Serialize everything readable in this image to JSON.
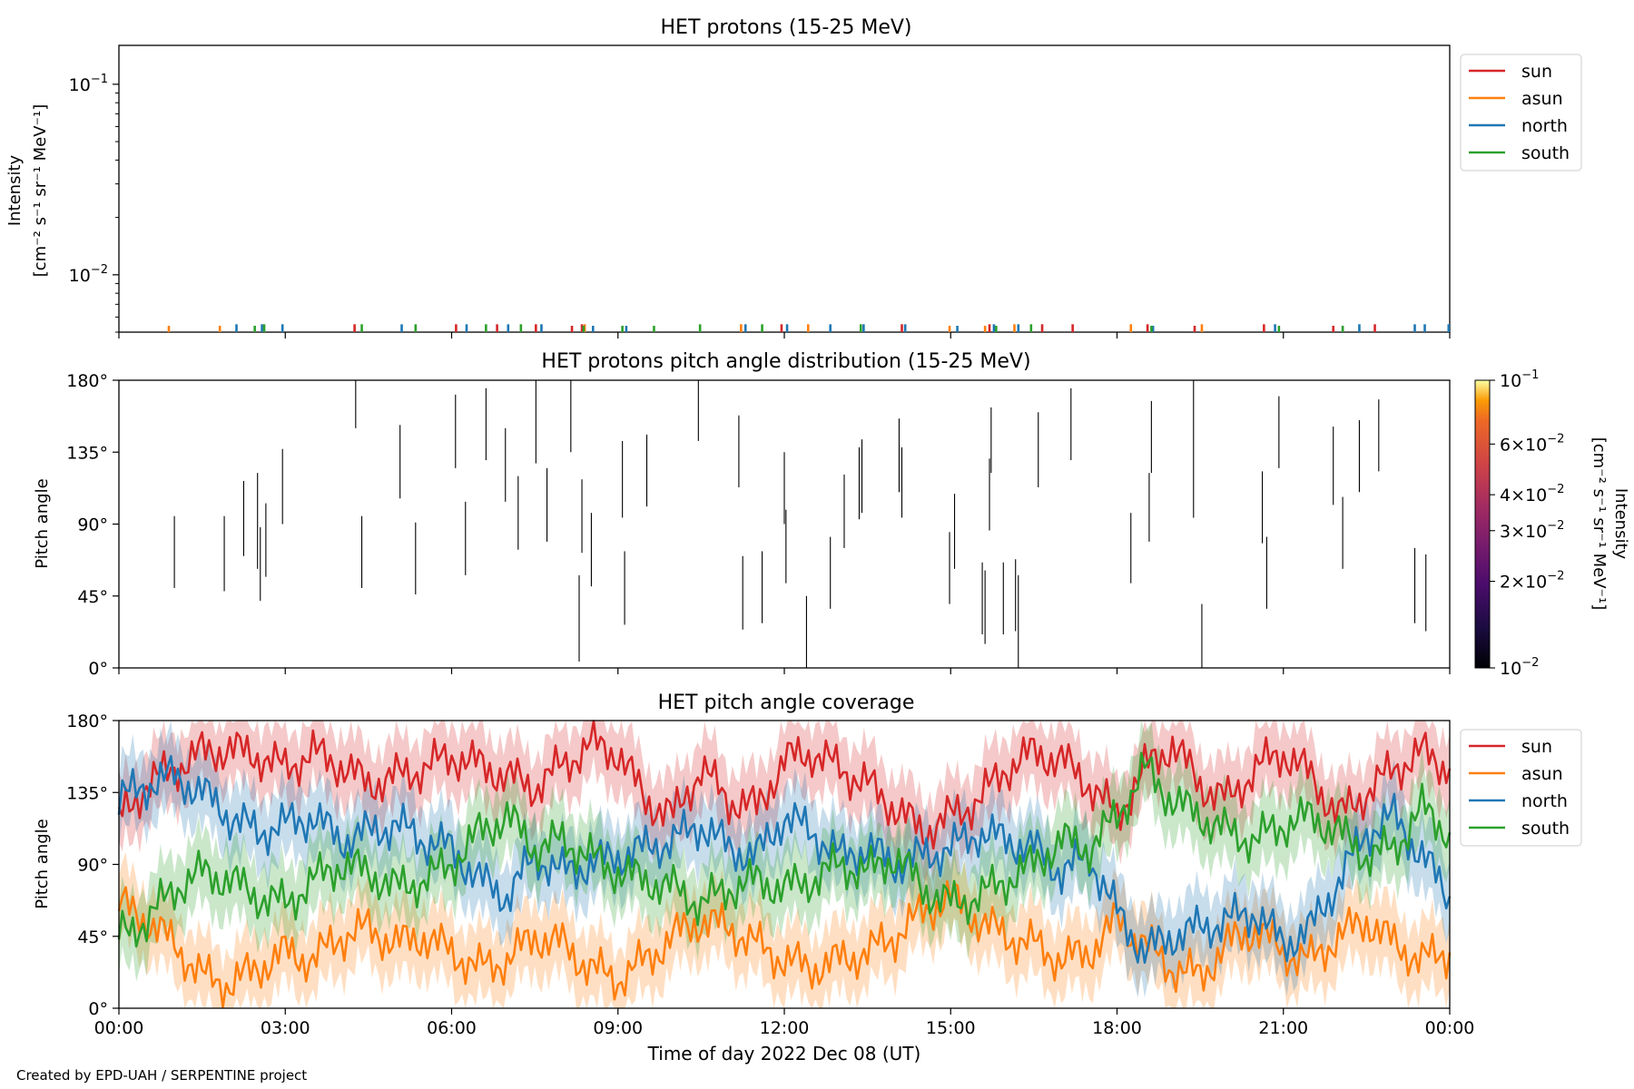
{
  "footer": {
    "credit": "Created by EPD-UAH / SERPENTINE project"
  },
  "colors": {
    "sun": "#d62728",
    "asun": "#ff7f0e",
    "north": "#1f77b4",
    "south": "#2ca02c"
  },
  "chart_data": [
    {
      "type": "bar",
      "title": "HET protons (15-25 MeV)",
      "ylabel_lines": [
        "Intensity",
        "[cm⁻² s⁻¹ sr⁻¹ MeV⁻¹]"
      ],
      "yscale": "log",
      "ylim": [
        0.005,
        0.16
      ],
      "yticks": [
        {
          "value": 0.01,
          "base": "10",
          "exp": "−2"
        },
        {
          "value": 0.1,
          "base": "10",
          "exp": "−1"
        }
      ],
      "xlim_hours": [
        0,
        24
      ],
      "legend": {
        "placement": "outside-right",
        "entries": [
          "sun",
          "asun",
          "north",
          "south"
        ]
      },
      "grid": false,
      "series": [
        {
          "name": "sun",
          "color": "#d62728",
          "x_hours": [
            4.25,
            6.08,
            6.82,
            7.52,
            8.17,
            8.35,
            11.95,
            14.12,
            15.7,
            16.65,
            17.2,
            18.55,
            19.4,
            20.65,
            21.9,
            22.65
          ],
          "values": [
            0.0055,
            0.0055,
            0.0055,
            0.0055,
            0.0054,
            0.0055,
            0.0055,
            0.0055,
            0.0055,
            0.0055,
            0.0055,
            0.0055,
            0.0054,
            0.0055,
            0.0054,
            0.0055
          ]
        },
        {
          "name": "asun",
          "color": "#ff7f0e",
          "x_hours": [
            0.9,
            1.82,
            8.4,
            11.22,
            12.43,
            14.98,
            15.62,
            16.15,
            18.25,
            19.53
          ],
          "values": [
            0.0054,
            0.0054,
            0.0055,
            0.0055,
            0.0055,
            0.0054,
            0.0054,
            0.0055,
            0.0055,
            0.0055
          ]
        },
        {
          "name": "north",
          "color": "#1f77b4",
          "x_hours": [
            2.12,
            2.58,
            2.95,
            5.1,
            6.27,
            7.02,
            7.62,
            8.55,
            9.15,
            11.3,
            12.05,
            12.83,
            13.43,
            14.18,
            15.12,
            15.78,
            16.22,
            18.65,
            20.85,
            22.37,
            23.37,
            23.55,
            23.98
          ],
          "values": [
            0.0055,
            0.0055,
            0.0055,
            0.0055,
            0.0055,
            0.0055,
            0.0055,
            0.0054,
            0.0054,
            0.0055,
            0.0055,
            0.0055,
            0.0055,
            0.0055,
            0.0054,
            0.0055,
            0.0055,
            0.0054,
            0.0055,
            0.0055,
            0.0055,
            0.0055,
            0.0055
          ]
        },
        {
          "name": "south",
          "color": "#2ca02c",
          "x_hours": [
            2.45,
            2.62,
            4.38,
            5.35,
            6.62,
            7.25,
            8.38,
            9.08,
            9.65,
            10.48,
            11.6,
            13.38,
            15.82,
            16.45,
            18.62,
            20.92,
            22.07
          ],
          "values": [
            0.0054,
            0.0055,
            0.0055,
            0.0055,
            0.0055,
            0.0055,
            0.0054,
            0.0054,
            0.0054,
            0.0055,
            0.0055,
            0.0055,
            0.0054,
            0.0055,
            0.0054,
            0.0054,
            0.0054
          ]
        }
      ]
    },
    {
      "type": "heatmap",
      "title": "HET protons pitch angle distribution (15-25 MeV)",
      "ylabel": "Pitch angle",
      "ylim": [
        0,
        180
      ],
      "yticks": [
        "0°",
        "45°",
        "90°",
        "135°",
        "180°"
      ],
      "xlim_hours": [
        0,
        24
      ],
      "colorbar": {
        "label_lines": [
          "Intensity",
          "[cm⁻² s⁻¹ sr⁻¹ MeV⁻¹]"
        ],
        "scale": "log",
        "range": [
          0.01,
          0.1
        ],
        "colormap": "inferno",
        "ticks": [
          {
            "value": 0.1,
            "mant": "",
            "base": "10",
            "exp": "−1"
          },
          {
            "value": 0.06,
            "mant": "6",
            "base": "10",
            "exp": "−2"
          },
          {
            "value": 0.04,
            "mant": "4",
            "base": "10",
            "exp": "−2"
          },
          {
            "value": 0.03,
            "mant": "3",
            "base": "10",
            "exp": "−2"
          },
          {
            "value": 0.02,
            "mant": "2",
            "base": "10",
            "exp": "−2"
          },
          {
            "value": 0.01,
            "mant": "",
            "base": "10",
            "exp": "−2"
          }
        ]
      },
      "segments": [
        {
          "x": 1.0,
          "y0": 50,
          "y1": 95
        },
        {
          "x": 1.9,
          "y0": 48,
          "y1": 95
        },
        {
          "x": 2.25,
          "y0": 70,
          "y1": 117
        },
        {
          "x": 2.5,
          "y0": 62,
          "y1": 122
        },
        {
          "x": 2.55,
          "y0": 42,
          "y1": 88
        },
        {
          "x": 2.65,
          "y0": 57,
          "y1": 103
        },
        {
          "x": 2.95,
          "y0": 90,
          "y1": 137
        },
        {
          "x": 4.27,
          "y0": 150,
          "y1": 180
        },
        {
          "x": 4.38,
          "y0": 50,
          "y1": 95
        },
        {
          "x": 5.07,
          "y0": 106,
          "y1": 152
        },
        {
          "x": 5.35,
          "y0": 46,
          "y1": 91
        },
        {
          "x": 6.07,
          "y0": 125,
          "y1": 171
        },
        {
          "x": 6.25,
          "y0": 58,
          "y1": 104
        },
        {
          "x": 6.62,
          "y0": 130,
          "y1": 175
        },
        {
          "x": 6.97,
          "y0": 104,
          "y1": 150
        },
        {
          "x": 7.2,
          "y0": 74,
          "y1": 120
        },
        {
          "x": 7.52,
          "y0": 128,
          "y1": 180
        },
        {
          "x": 7.72,
          "y0": 79,
          "y1": 125
        },
        {
          "x": 8.15,
          "y0": 135,
          "y1": 180
        },
        {
          "x": 8.3,
          "y0": 4,
          "y1": 58
        },
        {
          "x": 8.35,
          "y0": 72,
          "y1": 118
        },
        {
          "x": 8.52,
          "y0": 51,
          "y1": 97
        },
        {
          "x": 9.08,
          "y0": 94,
          "y1": 142
        },
        {
          "x": 9.12,
          "y0": 27,
          "y1": 73
        },
        {
          "x": 9.52,
          "y0": 101,
          "y1": 146
        },
        {
          "x": 10.45,
          "y0": 142,
          "y1": 180
        },
        {
          "x": 11.18,
          "y0": 113,
          "y1": 158
        },
        {
          "x": 11.25,
          "y0": 24,
          "y1": 70
        },
        {
          "x": 11.6,
          "y0": 28,
          "y1": 73
        },
        {
          "x": 12.0,
          "y0": 90,
          "y1": 135
        },
        {
          "x": 12.03,
          "y0": 53,
          "y1": 99
        },
        {
          "x": 12.4,
          "y0": 0,
          "y1": 45
        },
        {
          "x": 12.83,
          "y0": 37,
          "y1": 82
        },
        {
          "x": 13.08,
          "y0": 75,
          "y1": 121
        },
        {
          "x": 13.35,
          "y0": 93,
          "y1": 138
        },
        {
          "x": 13.4,
          "y0": 97,
          "y1": 143
        },
        {
          "x": 14.07,
          "y0": 110,
          "y1": 156
        },
        {
          "x": 14.12,
          "y0": 94,
          "y1": 138
        },
        {
          "x": 14.98,
          "y0": 40,
          "y1": 85
        },
        {
          "x": 15.07,
          "y0": 62,
          "y1": 109
        },
        {
          "x": 15.57,
          "y0": 21,
          "y1": 66
        },
        {
          "x": 15.62,
          "y0": 15,
          "y1": 61
        },
        {
          "x": 15.7,
          "y0": 86,
          "y1": 131
        },
        {
          "x": 15.73,
          "y0": 122,
          "y1": 163
        },
        {
          "x": 15.95,
          "y0": 21,
          "y1": 66
        },
        {
          "x": 16.17,
          "y0": 23,
          "y1": 68
        },
        {
          "x": 16.22,
          "y0": 0,
          "y1": 58
        },
        {
          "x": 16.58,
          "y0": 113,
          "y1": 160
        },
        {
          "x": 17.17,
          "y0": 130,
          "y1": 175
        },
        {
          "x": 18.25,
          "y0": 53,
          "y1": 97
        },
        {
          "x": 18.58,
          "y0": 79,
          "y1": 122
        },
        {
          "x": 18.62,
          "y0": 122,
          "y1": 167
        },
        {
          "x": 19.38,
          "y0": 94,
          "y1": 180
        },
        {
          "x": 19.53,
          "y0": 0,
          "y1": 40
        },
        {
          "x": 20.62,
          "y0": 78,
          "y1": 123
        },
        {
          "x": 20.7,
          "y0": 37,
          "y1": 82
        },
        {
          "x": 20.92,
          "y0": 125,
          "y1": 170
        },
        {
          "x": 21.9,
          "y0": 102,
          "y1": 151
        },
        {
          "x": 22.07,
          "y0": 62,
          "y1": 107
        },
        {
          "x": 22.37,
          "y0": 110,
          "y1": 155
        },
        {
          "x": 22.72,
          "y0": 123,
          "y1": 168
        },
        {
          "x": 23.37,
          "y0": 28,
          "y1": 75
        },
        {
          "x": 23.57,
          "y0": 23,
          "y1": 71
        }
      ]
    },
    {
      "type": "line",
      "title": "HET pitch angle coverage",
      "ylabel": "Pitch angle",
      "xlabel": "Time of day 2022 Dec 08 (UT)",
      "ylim": [
        0,
        180
      ],
      "yticks": [
        "0°",
        "45°",
        "90°",
        "135°",
        "180°"
      ],
      "xlim_hours": [
        0,
        24
      ],
      "xticks": [
        "00:00",
        "03:00",
        "06:00",
        "09:00",
        "12:00",
        "15:00",
        "18:00",
        "21:00",
        "00:00"
      ],
      "legend": {
        "placement": "outside-right",
        "entries": [
          "sun",
          "asun",
          "north",
          "south"
        ]
      },
      "band_halfwidth_deg": 22,
      "series": [
        {
          "name": "sun",
          "color": "#d62728",
          "x_hours": [
            0,
            0.5,
            1,
            1.5,
            2,
            2.5,
            3,
            3.5,
            4,
            4.5,
            5,
            5.5,
            6,
            6.5,
            7,
            7.5,
            8,
            8.5,
            9,
            9.5,
            10,
            10.5,
            11,
            11.5,
            12,
            12.5,
            13,
            13.5,
            14,
            14.5,
            15,
            15.5,
            16,
            16.5,
            17,
            17.5,
            18,
            18.5,
            19,
            19.5,
            20,
            20.5,
            21,
            21.5,
            22,
            22.5,
            23,
            23.5,
            24
          ],
          "values": [
            118,
            140,
            150,
            160,
            162,
            158,
            150,
            160,
            152,
            140,
            145,
            150,
            158,
            152,
            145,
            138,
            152,
            165,
            160,
            130,
            120,
            150,
            130,
            125,
            155,
            160,
            150,
            140,
            125,
            110,
            120,
            130,
            150,
            160,
            155,
            140,
            120,
            150,
            165,
            140,
            130,
            150,
            160,
            145,
            120,
            135,
            150,
            160,
            150
          ]
        },
        {
          "name": "asun",
          "color": "#ff7f0e",
          "x_hours": [
            0,
            0.5,
            1,
            1.5,
            2,
            2.5,
            3,
            3.5,
            4,
            4.5,
            5,
            5.5,
            6,
            6.5,
            7,
            7.5,
            8,
            8.5,
            9,
            9.5,
            10,
            10.5,
            11,
            11.5,
            12,
            12.5,
            13,
            13.5,
            14,
            14.5,
            15,
            15.5,
            16,
            16.5,
            17,
            17.5,
            18,
            18.5,
            19,
            19.5,
            20,
            20.5,
            21,
            21.5,
            22,
            22.5,
            23,
            23.5,
            24
          ],
          "values": [
            65,
            55,
            40,
            20,
            15,
            25,
            35,
            30,
            45,
            50,
            40,
            45,
            35,
            25,
            30,
            45,
            40,
            25,
            18,
            30,
            45,
            55,
            50,
            40,
            30,
            25,
            30,
            35,
            45,
            60,
            70,
            55,
            45,
            40,
            30,
            35,
            55,
            40,
            25,
            20,
            40,
            50,
            35,
            30,
            45,
            55,
            40,
            30,
            35
          ]
        },
        {
          "name": "north",
          "color": "#1f77b4",
          "x_hours": [
            0,
            0.5,
            1,
            1.5,
            2,
            2.5,
            3,
            3.5,
            4,
            4.5,
            5,
            5.5,
            6,
            6.5,
            7,
            7.5,
            8,
            8.5,
            9,
            9.5,
            10,
            10.5,
            11,
            11.5,
            12,
            12.5,
            13,
            13.5,
            14,
            14.5,
            15,
            15.5,
            16,
            16.5,
            17,
            17.5,
            18,
            18.5,
            19,
            19.5,
            20,
            20.5,
            21,
            21.5,
            22,
            22.5,
            23,
            23.5,
            24
          ],
          "values": [
            130,
            140,
            145,
            135,
            120,
            110,
            115,
            120,
            105,
            110,
            115,
            105,
            100,
            80,
            70,
            95,
            85,
            90,
            95,
            100,
            105,
            115,
            100,
            95,
            120,
            110,
            95,
            100,
            90,
            95,
            100,
            110,
            105,
            100,
            85,
            95,
            60,
            35,
            45,
            50,
            55,
            60,
            40,
            50,
            80,
            110,
            120,
            95,
            70
          ]
        },
        {
          "name": "south",
          "color": "#2ca02c",
          "x_hours": [
            0,
            0.5,
            1,
            1.5,
            2,
            2.5,
            3,
            3.5,
            4,
            4.5,
            5,
            5.5,
            6,
            6.5,
            7,
            7.5,
            8,
            8.5,
            9,
            9.5,
            10,
            10.5,
            11,
            11.5,
            12,
            12.5,
            13,
            13.5,
            14,
            14.5,
            15,
            15.5,
            16,
            16.5,
            17,
            17.5,
            18,
            18.5,
            19,
            19.5,
            20,
            20.5,
            21,
            21.5,
            22,
            22.5,
            23,
            23.5,
            24
          ],
          "values": [
            45,
            55,
            75,
            85,
            80,
            70,
            65,
            80,
            90,
            85,
            75,
            80,
            90,
            110,
            120,
            100,
            105,
            95,
            85,
            80,
            75,
            65,
            75,
            80,
            75,
            80,
            90,
            85,
            95,
            75,
            65,
            70,
            80,
            90,
            105,
            100,
            120,
            150,
            130,
            120,
            110,
            105,
            115,
            120,
            110,
            95,
            100,
            125,
            110
          ]
        }
      ]
    }
  ]
}
